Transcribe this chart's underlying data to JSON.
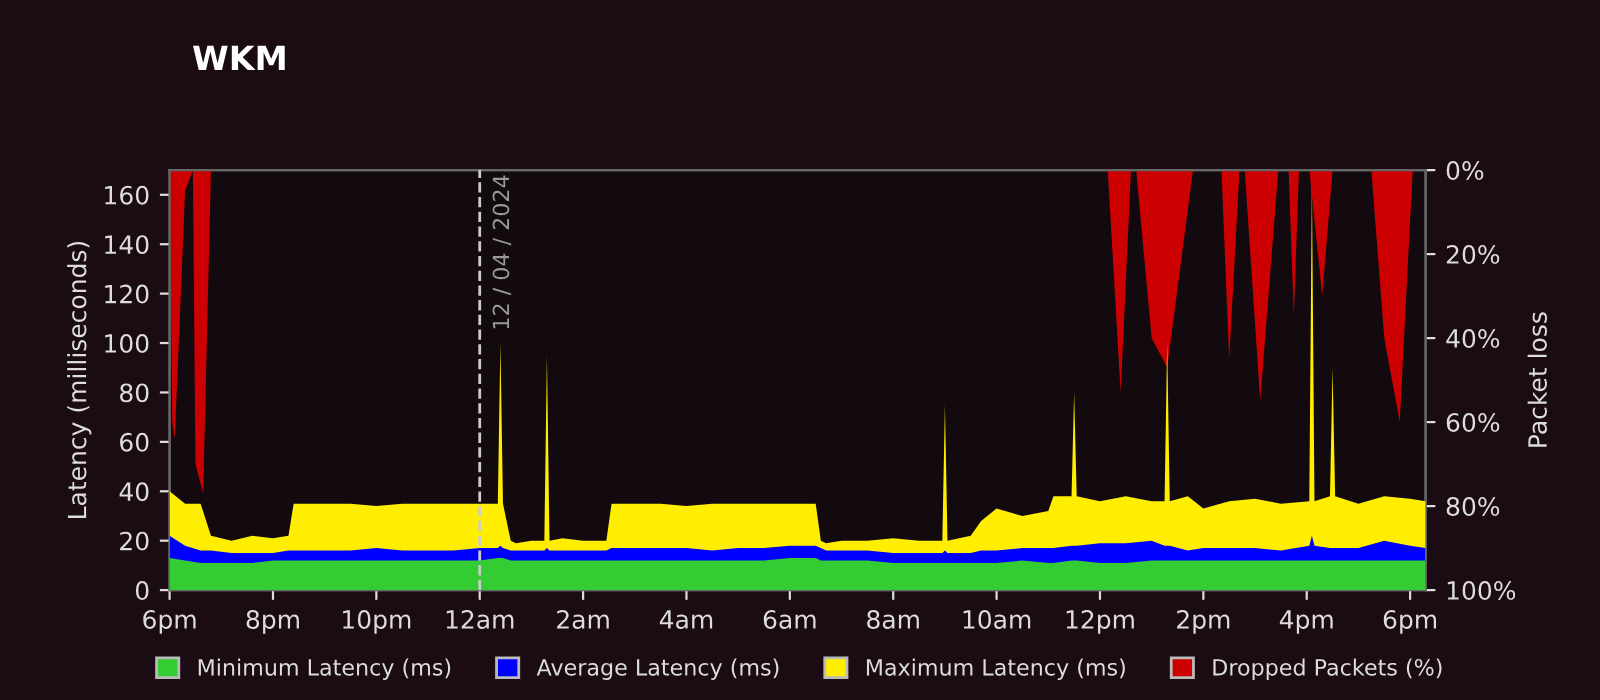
{
  "chart_data": {
    "type": "area",
    "title": "WKM",
    "ylabel": "Latency (milliseconds)",
    "y2label": "Packet loss",
    "x": [
      "2024-04-11T18:00",
      "2024-04-11T18:18",
      "2024-04-11T18:36",
      "2024-04-11T18:48",
      "2024-04-11T19:12",
      "2024-04-11T19:36",
      "2024-04-11T20:00",
      "2024-04-11T20:18",
      "2024-04-11T20:24",
      "2024-04-11T21:00",
      "2024-04-11T21:30",
      "2024-04-11T22:00",
      "2024-04-11T22:30",
      "2024-04-11T23:00",
      "2024-04-11T23:30",
      "2024-04-12T00:00",
      "2024-04-12T00:21",
      "2024-04-12T00:24",
      "2024-04-12T00:27",
      "2024-04-12T00:36",
      "2024-04-12T00:42",
      "2024-04-12T01:00",
      "2024-04-12T01:15",
      "2024-04-12T01:18",
      "2024-04-12T01:21",
      "2024-04-12T01:36",
      "2024-04-12T02:00",
      "2024-04-12T02:27",
      "2024-04-12T02:33",
      "2024-04-12T03:00",
      "2024-04-12T03:30",
      "2024-04-12T04:00",
      "2024-04-12T04:30",
      "2024-04-12T05:00",
      "2024-04-12T05:30",
      "2024-04-12T06:00",
      "2024-04-12T06:30",
      "2024-04-12T06:36",
      "2024-04-12T06:42",
      "2024-04-12T07:00",
      "2024-04-12T07:30",
      "2024-04-12T08:00",
      "2024-04-12T08:30",
      "2024-04-12T08:57",
      "2024-04-12T09:00",
      "2024-04-12T09:03",
      "2024-04-12T09:30",
      "2024-04-12T09:42",
      "2024-04-12T10:00",
      "2024-04-12T10:30",
      "2024-04-12T11:00",
      "2024-04-12T11:06",
      "2024-04-12T11:27",
      "2024-04-12T11:30",
      "2024-04-12T11:33",
      "2024-04-12T12:00",
      "2024-04-12T12:30",
      "2024-04-12T13:00",
      "2024-04-12T13:15",
      "2024-04-12T13:18",
      "2024-04-12T13:21",
      "2024-04-12T13:42",
      "2024-04-12T14:00",
      "2024-04-12T14:30",
      "2024-04-12T15:00",
      "2024-04-12T15:30",
      "2024-04-12T16:03",
      "2024-04-12T16:06",
      "2024-04-12T16:09",
      "2024-04-12T16:27",
      "2024-04-12T16:30",
      "2024-04-12T16:33",
      "2024-04-12T17:00",
      "2024-04-12T17:30",
      "2024-04-12T18:00",
      "2024-04-12T18:18"
    ],
    "series": [
      {
        "name": "Minimum Latency (ms)",
        "color": "#33cc33",
        "values": [
          13,
          12,
          11,
          11,
          11,
          11,
          12,
          12,
          12,
          12,
          12,
          12,
          12,
          12,
          12,
          12,
          13,
          13,
          13,
          12,
          12,
          12,
          12,
          12,
          12,
          12,
          12,
          12,
          12,
          12,
          12,
          12,
          12,
          12,
          12,
          13,
          13,
          12,
          12,
          12,
          12,
          11,
          11,
          11,
          11,
          11,
          11,
          11,
          11,
          12,
          11,
          11,
          12,
          12,
          12,
          11,
          11,
          12,
          12,
          12,
          12,
          12,
          12,
          12,
          12,
          12,
          12,
          12,
          12,
          12,
          12,
          12,
          12,
          12,
          12,
          12
        ]
      },
      {
        "name": "Average Latency (ms)",
        "color": "#0000ff",
        "values": [
          22,
          18,
          16,
          16,
          15,
          15,
          15,
          16,
          16,
          16,
          16,
          17,
          16,
          16,
          16,
          17,
          17,
          18,
          17,
          16,
          16,
          16,
          16,
          17,
          16,
          16,
          16,
          16,
          17,
          17,
          17,
          17,
          16,
          17,
          17,
          18,
          18,
          17,
          16,
          16,
          16,
          15,
          15,
          15,
          16,
          15,
          15,
          16,
          16,
          17,
          17,
          17,
          18,
          18,
          18,
          19,
          19,
          20,
          18,
          18,
          18,
          16,
          17,
          17,
          17,
          16,
          18,
          22,
          18,
          17,
          17,
          17,
          17,
          20,
          18,
          17
        ]
      },
      {
        "name": "Maximum Latency (ms)",
        "color": "#ffee00",
        "values": [
          40,
          35,
          35,
          22,
          20,
          22,
          21,
          22,
          35,
          35,
          35,
          34,
          35,
          35,
          35,
          35,
          35,
          100,
          35,
          20,
          19,
          20,
          20,
          95,
          20,
          21,
          20,
          20,
          35,
          35,
          35,
          34,
          35,
          35,
          35,
          35,
          35,
          20,
          19,
          20,
          20,
          21,
          20,
          20,
          75,
          20,
          22,
          28,
          33,
          30,
          32,
          38,
          38,
          80,
          38,
          36,
          38,
          36,
          36,
          100,
          36,
          38,
          33,
          36,
          37,
          35,
          36,
          165,
          36,
          38,
          90,
          38,
          35,
          38,
          37,
          36
        ]
      },
      {
        "name": "Dropped Packets (%)",
        "color": "#cc0000",
        "axis": "y2",
        "x": [
          "2024-04-11T18:00",
          "2024-04-11T18:03",
          "2024-04-11T18:06",
          "2024-04-11T18:18",
          "2024-04-11T18:27",
          "2024-04-11T18:30",
          "2024-04-11T18:39",
          "2024-04-11T18:48",
          "2024-04-12T12:09",
          "2024-04-12T12:24",
          "2024-04-12T12:36",
          "2024-04-12T12:42",
          "2024-04-12T13:00",
          "2024-04-12T13:18",
          "2024-04-12T13:48",
          "2024-04-12T14:21",
          "2024-04-12T14:30",
          "2024-04-12T14:42",
          "2024-04-12T14:48",
          "2024-04-12T15:06",
          "2024-04-12T15:27",
          "2024-04-12T15:39",
          "2024-04-12T15:45",
          "2024-04-12T15:51",
          "2024-04-12T16:03",
          "2024-04-12T16:18",
          "2024-04-12T16:30",
          "2024-04-12T17:15",
          "2024-04-12T17:30",
          "2024-04-12T17:48",
          "2024-04-12T18:03",
          "2024-04-12T18:18"
        ],
        "values": [
          0,
          60,
          64,
          5,
          0,
          70,
          77,
          0,
          0,
          53,
          0,
          0,
          40,
          47,
          0,
          0,
          45,
          0,
          0,
          55,
          0,
          0,
          35,
          0,
          0,
          30,
          0,
          0,
          40,
          60,
          0,
          0
        ]
      }
    ],
    "xlim": [
      "2024-04-11T18:00",
      "2024-04-12T18:18"
    ],
    "xticks": [
      {
        "value": "2024-04-11T18:00",
        "label": "6pm"
      },
      {
        "value": "2024-04-11T20:00",
        "label": "8pm"
      },
      {
        "value": "2024-04-11T22:00",
        "label": "10pm"
      },
      {
        "value": "2024-04-12T00:00",
        "label": "12am"
      },
      {
        "value": "2024-04-12T02:00",
        "label": "2am"
      },
      {
        "value": "2024-04-12T04:00",
        "label": "4am"
      },
      {
        "value": "2024-04-12T06:00",
        "label": "6am"
      },
      {
        "value": "2024-04-12T08:00",
        "label": "8am"
      },
      {
        "value": "2024-04-12T10:00",
        "label": "10am"
      },
      {
        "value": "2024-04-12T12:00",
        "label": "12pm"
      },
      {
        "value": "2024-04-12T14:00",
        "label": "2pm"
      },
      {
        "value": "2024-04-12T16:00",
        "label": "4pm"
      },
      {
        "value": "2024-04-12T18:00",
        "label": "6pm"
      }
    ],
    "ylim": [
      0,
      170
    ],
    "yticks": [
      0,
      20,
      40,
      60,
      80,
      100,
      120,
      140,
      160
    ],
    "y2lim": [
      100,
      0
    ],
    "y2ticks": [
      {
        "value": 0,
        "label": "0%"
      },
      {
        "value": 20,
        "label": "20%"
      },
      {
        "value": 40,
        "label": "40%"
      },
      {
        "value": 60,
        "label": "60%"
      },
      {
        "value": 80,
        "label": "80%"
      },
      {
        "value": 100,
        "label": "100%"
      }
    ],
    "ref_lines": [
      {
        "axis": "x",
        "value": "2024-04-12T00:00",
        "label": "12 / 04 / 2024",
        "color": "#cccccc",
        "line_style": "dashed"
      }
    ],
    "legend": "bottom",
    "grid": false
  }
}
